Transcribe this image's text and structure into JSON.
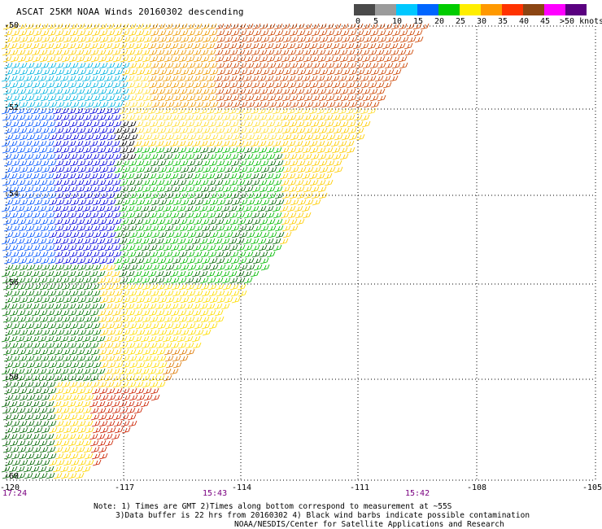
{
  "title": "ASCAT 25KM NOAA Winds 20160302 descending",
  "color_scale": {
    "labels": [
      "0",
      "5",
      "10",
      "15",
      "20",
      "25",
      "30",
      "35",
      "40",
      "45",
      ">50 knots"
    ],
    "colors": [
      "#4a4a4a",
      "#8a8a8a",
      "#00c8ff",
      "#1e90ff",
      "#0000ff",
      "#00cc00",
      "#ffe600",
      "#ff9900",
      "#ff3300",
      "#ff0066",
      "#8b4513",
      "#cc00cc",
      "#7a0080"
    ]
  },
  "axes": {
    "lat_labels": [
      "-50",
      "-52",
      "-54",
      "-56",
      "-58",
      "-60"
    ],
    "lon_labels": [
      "-120",
      "-117",
      "-114",
      "-111",
      "-108",
      "-105"
    ]
  },
  "times": [
    "17:24",
    "15:43",
    "15:42"
  ],
  "notes": {
    "line1": "Note: 1) Times are GMT 2)Times along bottom correspond to measurement at ~55S",
    "line2": "3)Data buffer is 22 hrs from 20160302 4) Black wind barbs indicate possible contamination",
    "line3": "NOAA/NESDIS/Center for Satellite Applications and Research"
  }
}
